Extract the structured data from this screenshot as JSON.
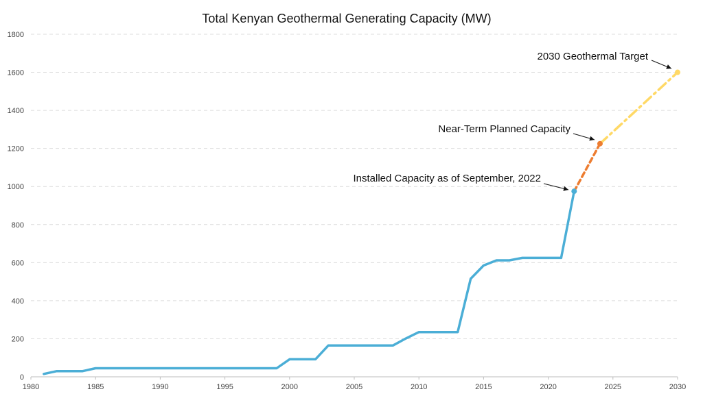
{
  "chart_data": {
    "type": "line",
    "title": "Total Kenyan Geothermal Generating Capacity (MW)",
    "xlabel": "",
    "ylabel": "",
    "xlim": [
      1980,
      2030
    ],
    "ylim": [
      0,
      1800
    ],
    "x_ticks": [
      1980,
      1985,
      1990,
      1995,
      2000,
      2005,
      2010,
      2015,
      2020,
      2025,
      2030
    ],
    "y_ticks": [
      0,
      200,
      400,
      600,
      800,
      1000,
      1200,
      1400,
      1600,
      1800
    ],
    "grid": "horizontal dashed",
    "legend": "none",
    "series": [
      {
        "color": "#4BAED6",
        "style": "solid",
        "x": [
          1981,
          1982,
          1983,
          1984,
          1985,
          1986,
          1987,
          1988,
          1989,
          1990,
          1991,
          1992,
          1993,
          1994,
          1995,
          1996,
          1997,
          1998,
          1999,
          2000,
          2001,
          2002,
          2003,
          2004,
          2005,
          2006,
          2007,
          2008,
          2009,
          2010,
          2011,
          2012,
          2013,
          2014,
          2015,
          2016,
          2017,
          2018,
          2019,
          2020,
          2021,
          2022
        ],
        "y": [
          15,
          30,
          30,
          30,
          45,
          45,
          45,
          45,
          45,
          45,
          45,
          45,
          45,
          45,
          45,
          45,
          45,
          45,
          45,
          92,
          92,
          92,
          165,
          165,
          165,
          165,
          165,
          165,
          202,
          235,
          235,
          235,
          235,
          515,
          585,
          612,
          612,
          625,
          625,
          625,
          625,
          975
        ]
      },
      {
        "color": "#ED7D31",
        "style": "dashed",
        "x": [
          2022,
          2024
        ],
        "y": [
          975,
          1225
        ]
      },
      {
        "color": "#FFD966",
        "style": "dashdot",
        "x": [
          2024,
          2030
        ],
        "y": [
          1225,
          1600
        ]
      }
    ],
    "annotations": [
      {
        "text": "Installed Capacity as of September, 2022",
        "x": 2022,
        "y": 975,
        "color": "#4BAED6"
      },
      {
        "text": "Near-Term Planned Capacity",
        "x": 2024,
        "y": 1225,
        "color": "#ED7D31"
      },
      {
        "text": "2030 Geothermal Target",
        "x": 2030,
        "y": 1600,
        "color": "#FFD966"
      }
    ]
  }
}
